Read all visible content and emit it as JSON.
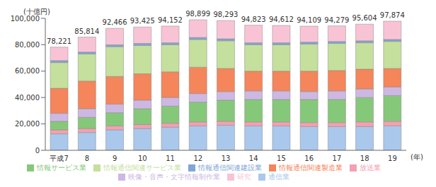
{
  "chart_data": {
    "type": "bar",
    "stacked": true,
    "grid": false,
    "legend": "bottom",
    "y_label": "(十億円)",
    "x_label": "(年)",
    "categories": [
      "平成7",
      "8",
      "9",
      "10",
      "11",
      "12",
      "13",
      "14",
      "15",
      "16",
      "17",
      "18",
      "19"
    ],
    "ylim": [
      0,
      100000
    ],
    "yticks": [
      0,
      {
        "value": 20000,
        "label": "20,000"
      },
      {
        "value": 40000,
        "label": "40,000"
      },
      {
        "value": 60000,
        "label": "60,000"
      },
      {
        "value": 80000,
        "label": "80,000"
      },
      {
        "value": 100000,
        "label": "100,000"
      }
    ],
    "series": [
      {
        "name": "通信業",
        "color": "#a9c8ec",
        "values": [
          12500,
          13500,
          15500,
          16500,
          17500,
          18500,
          19000,
          18500,
          18500,
          18000,
          18000,
          18000,
          18500
        ]
      },
      {
        "name": "放送業",
        "color": "#f4a0b0",
        "values": [
          3000,
          3000,
          3000,
          3000,
          3000,
          3000,
          3000,
          3000,
          3000,
          3000,
          3000,
          3500,
          3500
        ]
      },
      {
        "name": "情報サービス業",
        "color": "#86c87a",
        "values": [
          6500,
          8500,
          10000,
          12000,
          13000,
          15000,
          16000,
          17000,
          17000,
          17500,
          17500,
          18500,
          19500
        ]
      },
      {
        "name": "映像・音声・文字情報制作業",
        "color": "#cdb8e3",
        "values": [
          6000,
          6500,
          6500,
          6500,
          6500,
          6500,
          6500,
          6500,
          6500,
          6000,
          6500,
          6500,
          6500
        ]
      },
      {
        "name": "情報通信関連製造業",
        "color": "#f5855a",
        "values": [
          19000,
          21000,
          21000,
          20000,
          19500,
          20000,
          17500,
          15000,
          15000,
          15500,
          15500,
          15000,
          14000
        ]
      },
      {
        "name": "情報通信関連サービス業",
        "color": "#c4e09c",
        "values": [
          19500,
          20500,
          22500,
          21500,
          20500,
          21000,
          21000,
          20000,
          20000,
          20500,
          20500,
          20000,
          20500
        ]
      },
      {
        "name": "情報通信関連建設業",
        "color": "#7fa6d6",
        "values": [
          1500,
          1500,
          1500,
          1500,
          1500,
          1500,
          1500,
          1500,
          1500,
          1500,
          1500,
          1500,
          1500
        ]
      },
      {
        "name": "研究",
        "color": "#f9c3d6",
        "values": [
          10221,
          11314,
          12466,
          12425,
          12652,
          13399,
          13793,
          13323,
          13112,
          12109,
          11779,
          12604,
          13874
        ]
      }
    ],
    "totals": {
      "values": [
        78221,
        85814,
        92466,
        93425,
        94152,
        98899,
        98293,
        94823,
        94612,
        94109,
        94279,
        95604,
        97874
      ],
      "value_labels": [
        "78,221",
        "85,814",
        "92,466",
        "93,425",
        "94,152",
        "98,899",
        "98,293",
        "94,823",
        "94,612",
        "94,109",
        "94,279",
        "95,604",
        "97,874"
      ]
    }
  }
}
